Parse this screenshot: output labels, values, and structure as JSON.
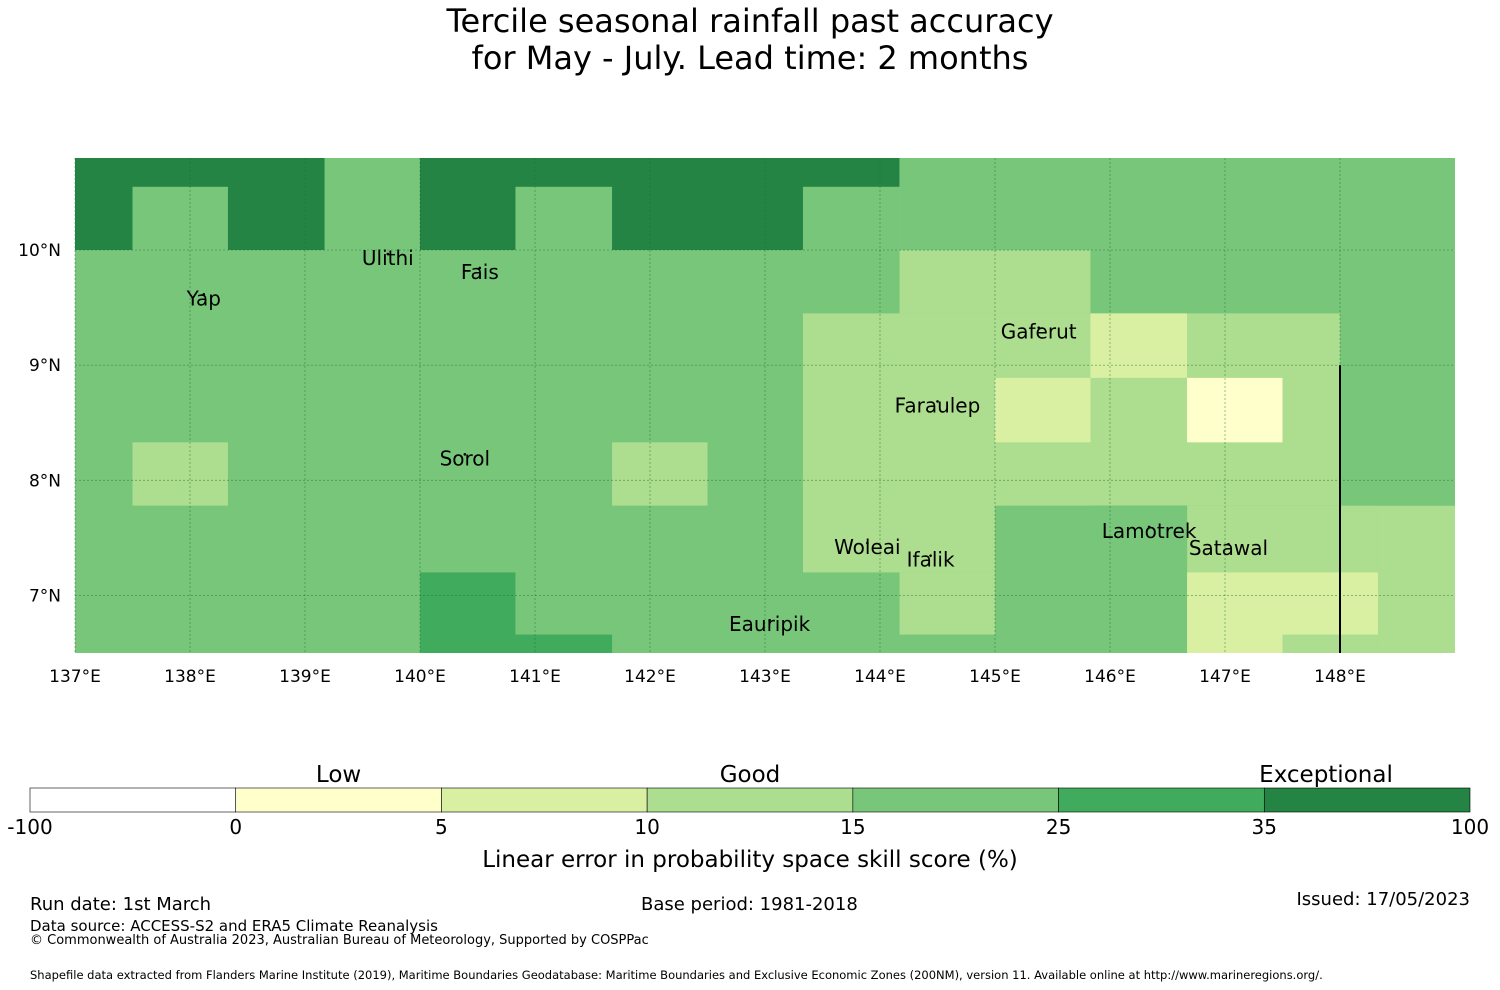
{
  "title": {
    "line1": "Tercile seasonal rainfall past accuracy",
    "line2": "for May - July. Lead time: 2 months"
  },
  "map": {
    "lon_ticks": [
      {
        "value": 137,
        "label": "137°E"
      },
      {
        "value": 138,
        "label": "138°E"
      },
      {
        "value": 139,
        "label": "139°E"
      },
      {
        "value": 140,
        "label": "140°E"
      },
      {
        "value": 141,
        "label": "141°E"
      },
      {
        "value": 142,
        "label": "142°E"
      },
      {
        "value": 143,
        "label": "143°E"
      },
      {
        "value": 144,
        "label": "144°E"
      },
      {
        "value": 145,
        "label": "145°E"
      },
      {
        "value": 146,
        "label": "146°E"
      },
      {
        "value": 147,
        "label": "147°E"
      },
      {
        "value": 148,
        "label": "148°E"
      }
    ],
    "lat_ticks": [
      {
        "value": 10,
        "label": "10°N"
      },
      {
        "value": 9,
        "label": "9°N"
      },
      {
        "value": 8,
        "label": "8°N"
      },
      {
        "value": 7,
        "label": "7°N"
      }
    ],
    "lon_range": [
      137,
      149
    ],
    "lat_range": [
      6.5,
      10.8
    ],
    "zones": [
      {
        "category": 7,
        "lon": [
          137.0,
          144.17
        ],
        "lat": [
          10.0,
          10.8
        ]
      },
      {
        "category": 5,
        "lon": [
          144.17,
          149.0
        ],
        "lat": [
          10.0,
          10.8
        ]
      },
      {
        "category": 5,
        "lon": [
          137.5,
          138.33
        ],
        "lat": [
          10.0,
          10.55
        ]
      },
      {
        "category": 5,
        "lon": [
          139.17,
          140.0
        ],
        "lat": [
          10.0,
          10.8
        ]
      },
      {
        "category": 5,
        "lon": [
          140.83,
          141.67
        ],
        "lat": [
          10.0,
          10.55
        ]
      },
      {
        "category": 5,
        "lon": [
          143.33,
          144.17
        ],
        "lat": [
          10.0,
          10.55
        ]
      },
      {
        "category": 5,
        "lon": [
          137.0,
          149.0
        ],
        "lat": [
          6.5,
          10.0
        ]
      },
      {
        "category": 4,
        "lon": [
          144.17,
          145.83
        ],
        "lat": [
          9.45,
          10.0
        ]
      },
      {
        "category": 4,
        "lon": [
          143.33,
          145.83
        ],
        "lat": [
          7.2,
          9.45
        ]
      },
      {
        "category": 4,
        "lon": [
          144.17,
          145.0
        ],
        "lat": [
          6.66,
          7.2
        ]
      },
      {
        "category": 4,
        "lon": [
          145.0,
          148.0
        ],
        "lat": [
          7.78,
          9.45
        ]
      },
      {
        "category": 4,
        "lon": [
          146.67,
          148.33
        ],
        "lat": [
          6.5,
          7.78
        ]
      },
      {
        "category": 4,
        "lon": [
          148.33,
          149.0
        ],
        "lat": [
          6.5,
          7.78
        ]
      },
      {
        "category": 4,
        "lon": [
          145.83,
          146.67
        ],
        "lat": [
          6.5,
          7.2
        ]
      },
      {
        "category": 4,
        "lon": [
          137.5,
          138.33
        ],
        "lat": [
          7.78,
          8.33
        ]
      },
      {
        "category": 4,
        "lon": [
          141.67,
          142.5
        ],
        "lat": [
          7.78,
          8.33
        ]
      },
      {
        "category": 5,
        "lon": [
          148.0,
          149.0
        ],
        "lat": [
          8.89,
          9.45
        ]
      },
      {
        "category": 5,
        "lon": [
          148.33,
          149.0
        ],
        "lat": [
          7.78,
          8.89
        ]
      },
      {
        "category": 5,
        "lon": [
          145.0,
          146.67
        ],
        "lat": [
          6.5,
          7.78
        ]
      },
      {
        "category": 5,
        "lon": [
          145.83,
          146.67
        ],
        "lat": [
          7.2,
          7.78
        ]
      },
      {
        "category": 3,
        "lon": [
          145.83,
          146.67
        ],
        "lat": [
          8.89,
          9.45
        ]
      },
      {
        "category": 3,
        "lon": [
          145.0,
          145.83
        ],
        "lat": [
          8.33,
          8.89
        ]
      },
      {
        "category": 3,
        "lon": [
          146.67,
          147.5
        ],
        "lat": [
          6.5,
          7.2
        ]
      },
      {
        "category": 3,
        "lon": [
          147.5,
          148.33
        ],
        "lat": [
          6.66,
          7.2
        ]
      },
      {
        "category": 2,
        "lon": [
          146.67,
          147.5
        ],
        "lat": [
          8.33,
          8.89
        ]
      },
      {
        "category": 6,
        "lon": [
          140.0,
          140.83
        ],
        "lat": [
          6.5,
          7.2
        ]
      },
      {
        "category": 6,
        "lon": [
          140.83,
          141.67
        ],
        "lat": [
          6.5,
          6.66
        ]
      }
    ],
    "islands": [
      {
        "name": "Ulithi",
        "lon": 139.72,
        "lat": 9.87
      },
      {
        "name": "Fais",
        "lon": 140.52,
        "lat": 9.75
      },
      {
        "name": "Yap",
        "lon": 138.12,
        "lat": 9.52
      },
      {
        "name": "Gaferut",
        "lon": 145.38,
        "lat": 9.23
      },
      {
        "name": "Faraulep",
        "lon": 144.5,
        "lat": 8.59
      },
      {
        "name": "Sorol",
        "lon": 140.39,
        "lat": 8.13
      },
      {
        "name": "Woleai",
        "lon": 143.89,
        "lat": 7.36
      },
      {
        "name": "Ifalik",
        "lon": 144.44,
        "lat": 7.25
      },
      {
        "name": "Lamotrek",
        "lon": 146.34,
        "lat": 7.5
      },
      {
        "name": "Satawal",
        "lon": 147.03,
        "lat": 7.35
      },
      {
        "name": "Eauripik",
        "lon": 143.04,
        "lat": 6.69
      }
    ],
    "boundary_line": {
      "lon": 148.0,
      "lat": [
        6.5,
        9.0
      ]
    }
  },
  "colorbar": {
    "bins": [
      {
        "label_low": "-100",
        "color": "#ffffff"
      },
      {
        "label_low": "0",
        "color": "#ffffcc"
      },
      {
        "label_low": "5",
        "color": "#d9f0a3"
      },
      {
        "label_low": "10",
        "color": "#addd8e"
      },
      {
        "label_low": "15",
        "color": "#78c679"
      },
      {
        "label_low": "25",
        "color": "#41ab5d"
      },
      {
        "label_low": "35",
        "color": "#238443"
      }
    ],
    "end_label": "100",
    "categories": [
      "Low",
      "Good",
      "Exceptional"
    ],
    "xlabel": "Linear error in probability space skill score (%)"
  },
  "footer": {
    "run_date": "Run date: 1st March",
    "base_period": "Base period: 1981-2018",
    "issued": "Issued: 17/05/2023",
    "data_source": "Data source: ACCESS-S2 and ERA5 Climate Reanalysis",
    "copyright": "© Commonwealth of Australia 2023, Australian Bureau of Meteorology, Supported by COSPPac",
    "shapefile": "Shapefile data extracted from Flanders Marine Institute (2019), Maritime Boundaries Geodatabase: Maritime Boundaries and Exclusive Economic Zones (200NM), version 11. Available online at http://www.marineregions.org/."
  }
}
